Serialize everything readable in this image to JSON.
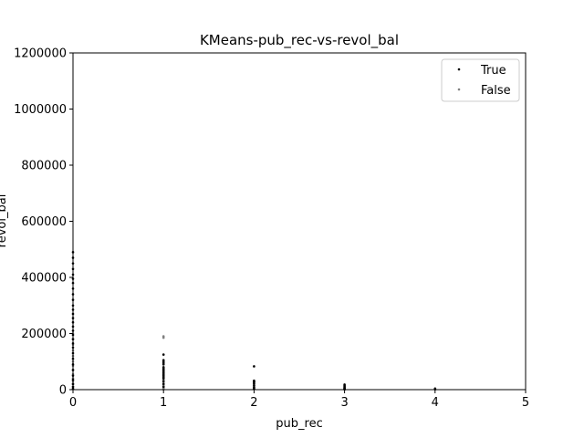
{
  "chart_data": {
    "type": "scatter",
    "title": "KMeans-pub_rec-vs-revol_bal",
    "xlabel": "pub_rec",
    "ylabel": "revol_bal",
    "xlim": [
      0,
      5
    ],
    "ylim": [
      0,
      1200000
    ],
    "x_ticks": [
      "0",
      "1",
      "2",
      "3",
      "4",
      "5"
    ],
    "y_ticks": [
      "0",
      "200000",
      "400000",
      "600000",
      "800000",
      "1000000",
      "1200000"
    ],
    "grid": false,
    "legend_position": "top-right",
    "series": [
      {
        "name": "True",
        "color": "#000000",
        "x": [
          0,
          0,
          0,
          0,
          0,
          0,
          0,
          0,
          0,
          0,
          0,
          0,
          0,
          0,
          0,
          0,
          0,
          0,
          0,
          0,
          0,
          0,
          0,
          0,
          0,
          0,
          0,
          0,
          0,
          0,
          1,
          1,
          1,
          1,
          1,
          1,
          1,
          1,
          1,
          1,
          1,
          1,
          1,
          1,
          1,
          1,
          1,
          2,
          2,
          2,
          2,
          2,
          2,
          2,
          2,
          3,
          3,
          3,
          3,
          3,
          3,
          4,
          4
        ],
        "y": [
          490000,
          470000,
          450000,
          430000,
          410000,
          395000,
          380000,
          360000,
          340000,
          320000,
          300000,
          285000,
          270000,
          255000,
          240000,
          225000,
          210000,
          195000,
          180000,
          165000,
          150000,
          130000,
          110000,
          90000,
          70000,
          50000,
          35000,
          20000,
          10000,
          3000,
          125000,
          105000,
          100000,
          95000,
          90000,
          80000,
          75000,
          70000,
          65000,
          60000,
          55000,
          50000,
          45000,
          40000,
          30000,
          20000,
          10000,
          83000,
          32000,
          29000,
          27000,
          22000,
          15000,
          8000,
          3000,
          18000,
          14000,
          10000,
          6000,
          3000,
          1000,
          4000,
          1500
        ]
      },
      {
        "name": "False",
        "color": "#808080",
        "x": [
          0,
          0,
          0,
          0,
          0,
          0,
          0,
          0,
          0,
          0,
          0,
          0,
          0,
          0,
          1,
          1,
          1,
          1,
          1,
          1,
          1,
          1,
          1,
          1,
          1,
          1,
          1,
          1,
          1,
          1,
          1,
          1,
          1,
          1,
          1,
          2,
          2,
          2,
          2,
          2,
          2,
          3,
          3,
          3,
          3,
          4
        ],
        "y": [
          200000,
          180000,
          160000,
          140000,
          120000,
          100000,
          85000,
          70000,
          55000,
          40000,
          30000,
          20000,
          10000,
          2000,
          190000,
          185000,
          80000,
          75000,
          70000,
          65000,
          60000,
          55000,
          50000,
          45000,
          40000,
          35000,
          30000,
          25000,
          20000,
          15000,
          12000,
          8000,
          5000,
          3000,
          1000,
          28000,
          20000,
          15000,
          10000,
          5000,
          2000,
          9000,
          6000,
          3000,
          1000,
          1000
        ]
      }
    ]
  }
}
